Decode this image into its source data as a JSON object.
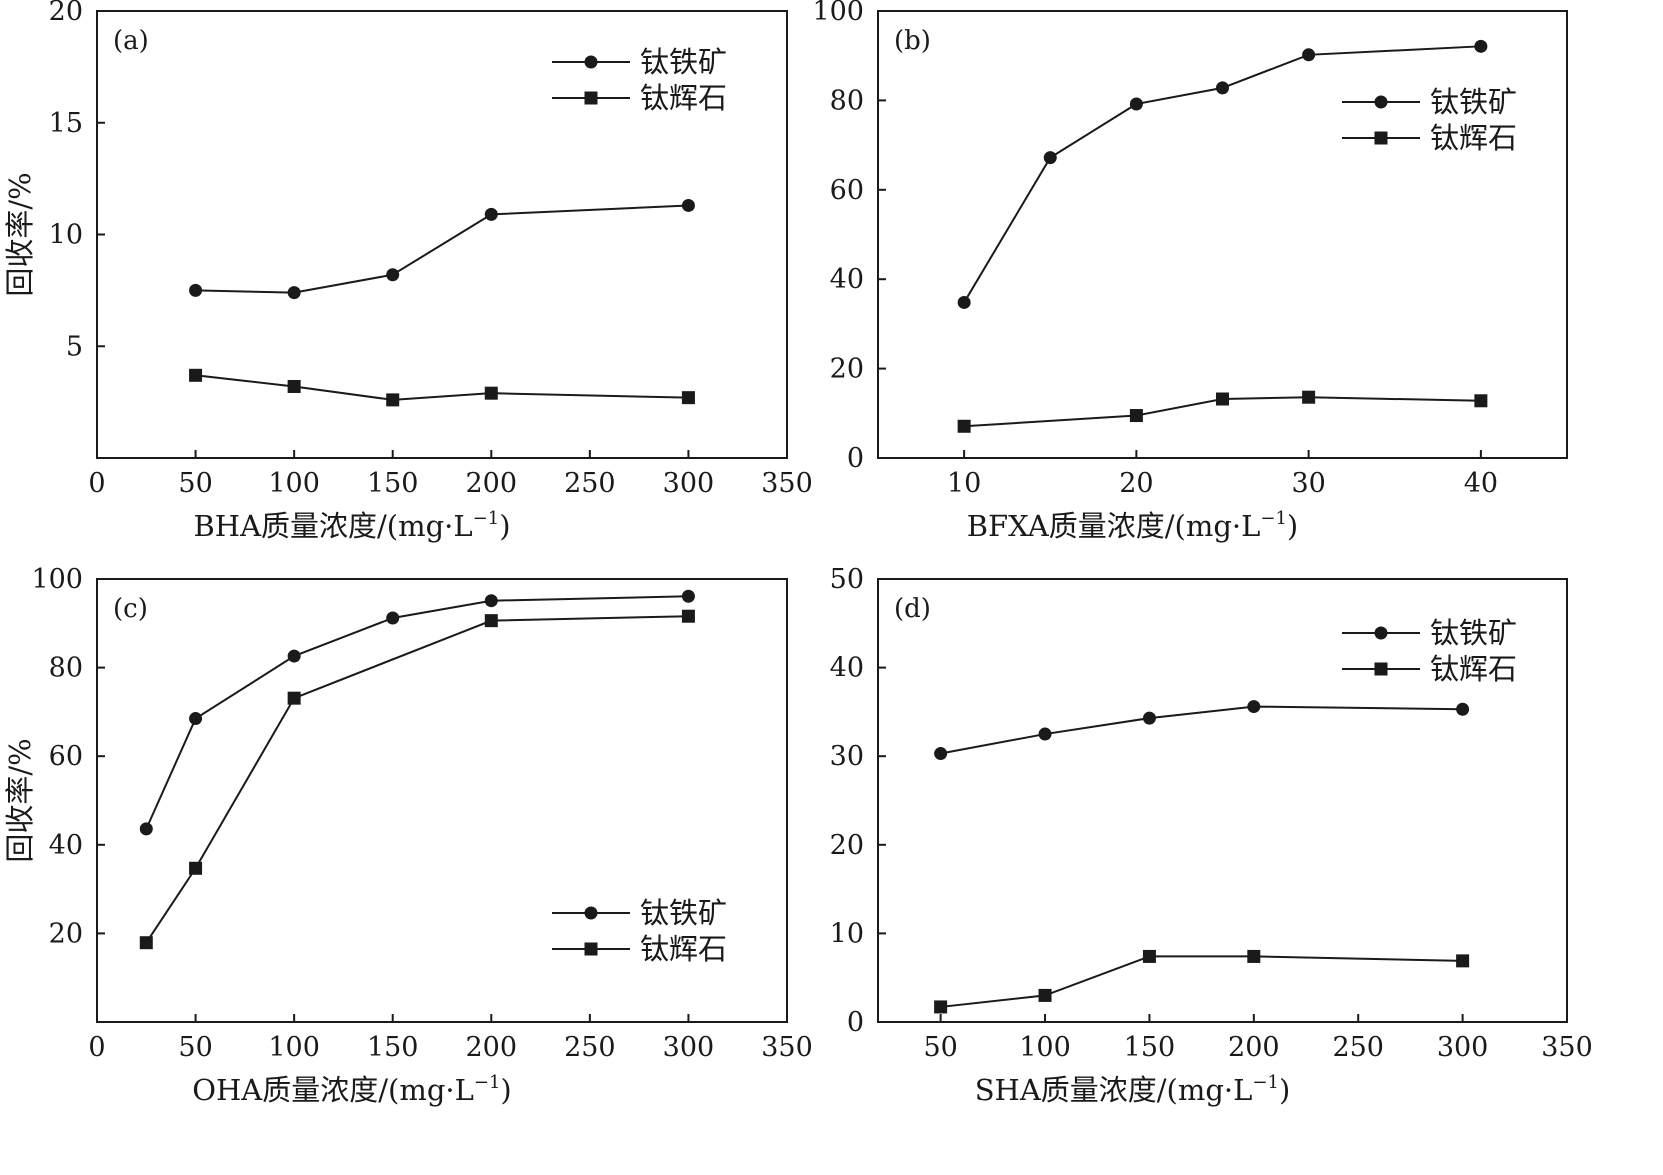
{
  "chart_data": [
    {
      "id": "a",
      "type": "line",
      "panel_label": "(a)",
      "xlabel": "BHA质量浓度/(mg·L",
      "xlabel_sup": "−1",
      "xlabel_tail": ")",
      "ylabel": "回收率/%",
      "xlim": [
        0,
        350
      ],
      "ylim": [
        0,
        20
      ],
      "xticks": [
        0,
        50,
        100,
        150,
        200,
        250,
        300,
        350
      ],
      "yticks": [
        5,
        10,
        15,
        20
      ],
      "legend_position": "top-right",
      "series": [
        {
          "name": "钛铁矿",
          "marker": "circle",
          "x": [
            50,
            100,
            150,
            200,
            300
          ],
          "values": [
            7.5,
            7.4,
            8.2,
            10.9,
            11.3
          ]
        },
        {
          "name": "钛辉石",
          "marker": "square",
          "x": [
            50,
            100,
            150,
            200,
            300
          ],
          "values": [
            3.7,
            3.2,
            2.6,
            2.9,
            2.7
          ]
        }
      ]
    },
    {
      "id": "b",
      "type": "line",
      "panel_label": "(b)",
      "xlabel": "BFXA质量浓度/(mg·L",
      "xlabel_sup": "−1",
      "xlabel_tail": ")",
      "ylabel": "",
      "xlim": [
        5,
        45
      ],
      "ylim": [
        0,
        100
      ],
      "xticks": [
        10,
        20,
        30,
        40
      ],
      "yticks": [
        0,
        20,
        40,
        60,
        80,
        100
      ],
      "legend_position": "top-right",
      "series": [
        {
          "name": "钛铁矿",
          "marker": "circle",
          "x": [
            10,
            15,
            20,
            25,
            30,
            40
          ],
          "values": [
            34.8,
            67.2,
            79.2,
            82.8,
            90.2,
            92.1
          ]
        },
        {
          "name": "钛辉石",
          "marker": "square",
          "x": [
            10,
            20,
            25,
            30,
            40
          ],
          "values": [
            7.1,
            9.5,
            13.2,
            13.6,
            12.8
          ]
        }
      ]
    },
    {
      "id": "c",
      "type": "line",
      "panel_label": "(c)",
      "xlabel": "OHA质量浓度/(mg·L",
      "xlabel_sup": "−1",
      "xlabel_tail": ")",
      "ylabel": "回收率/%",
      "xlim": [
        0,
        350
      ],
      "ylim": [
        0,
        100
      ],
      "xticks": [
        0,
        50,
        100,
        150,
        200,
        250,
        300,
        350
      ],
      "yticks": [
        20,
        40,
        60,
        80,
        100
      ],
      "legend_position": "bottom-right",
      "series": [
        {
          "name": "钛铁矿",
          "marker": "circle",
          "x": [
            25,
            50,
            100,
            150,
            200,
            300
          ],
          "values": [
            43.6,
            68.5,
            82.6,
            91.2,
            95.1,
            96.1
          ]
        },
        {
          "name": "钛辉石",
          "marker": "square",
          "x": [
            25,
            50,
            100,
            200,
            300
          ],
          "values": [
            17.9,
            34.7,
            73.1,
            90.6,
            91.6
          ]
        }
      ]
    },
    {
      "id": "d",
      "type": "line",
      "panel_label": "(d)",
      "xlabel": "SHA质量浓度/(mg·L",
      "xlabel_sup": "−1",
      "xlabel_tail": ")",
      "ylabel": "",
      "xlim": [
        20,
        350
      ],
      "ylim": [
        0,
        50
      ],
      "xticks": [
        50,
        100,
        150,
        200,
        250,
        300,
        350
      ],
      "yticks": [
        0,
        10,
        20,
        30,
        40,
        50
      ],
      "legend_position": "top-right",
      "series": [
        {
          "name": "钛铁矿",
          "marker": "circle",
          "x": [
            50,
            100,
            150,
            200,
            300
          ],
          "values": [
            30.3,
            32.5,
            34.3,
            35.6,
            35.3
          ]
        },
        {
          "name": "钛辉石",
          "marker": "square",
          "x": [
            50,
            100,
            150,
            200,
            300
          ],
          "values": [
            1.7,
            3.0,
            7.4,
            7.4,
            6.9
          ]
        }
      ]
    }
  ]
}
